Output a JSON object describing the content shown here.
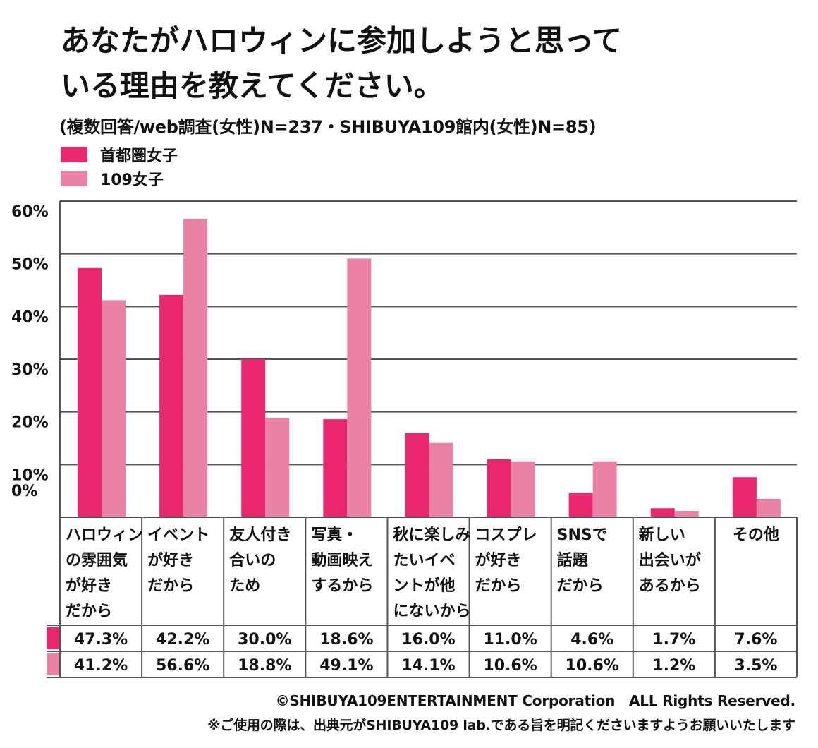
{
  "title_lines": [
    "あなたがハロウィンに参加しようと思って",
    "いる理由を教えてください。"
  ],
  "subtitle": "(複数回答/web調査(女性)N=237・SHIBUYA109館内(女性)N=85)",
  "colors": {
    "series_a": "#e8276e",
    "series_b": "#ea82a6",
    "grid": "#555555"
  },
  "chart_data": {
    "type": "bar",
    "title": "あなたがハロウィンに参加しようと思っている理由を教えてください。",
    "subtitle": "(複数回答/web調査(女性)N=237・SHIBUYA109館内(女性)N=85)",
    "ylim": [
      0,
      60
    ],
    "yticks": [
      0,
      10,
      20,
      30,
      40,
      50,
      60
    ],
    "ytick_labels": [
      "0%",
      "10%",
      "20%",
      "30%",
      "40%",
      "50%",
      "60%"
    ],
    "grid": true,
    "legend": "top-left",
    "categories": [
      [
        "ハロウィン",
        "の雰囲気",
        "が好き",
        "だから"
      ],
      [
        "イベント",
        "が好き",
        "だから"
      ],
      [
        "友人付き",
        "合いの",
        "ため"
      ],
      [
        "写真・",
        "動画映え",
        "するから"
      ],
      [
        "秋に楽しみ",
        "たいイベ",
        "ントが他",
        "にないから"
      ],
      [
        "コスプレ",
        "が好き",
        "だから"
      ],
      [
        "SNSで",
        "話題",
        "だから"
      ],
      [
        "新しい",
        "出会いが",
        "あるから"
      ],
      [
        "その他"
      ]
    ],
    "series": [
      {
        "name": "首都圏女子",
        "values": [
          47.3,
          42.2,
          30.0,
          18.6,
          16.0,
          11.0,
          4.6,
          1.7,
          7.6
        ],
        "value_labels": [
          "47.3%",
          "42.2%",
          "30.0%",
          "18.6%",
          "16.0%",
          "11.0%",
          "4.6%",
          "1.7%",
          "7.6%"
        ]
      },
      {
        "name": "109女子",
        "values": [
          41.2,
          56.6,
          18.8,
          49.1,
          14.1,
          10.6,
          10.6,
          1.2,
          3.5
        ],
        "value_labels": [
          "41.2%",
          "56.6%",
          "18.8%",
          "49.1%",
          "14.1%",
          "10.6%",
          "10.6%",
          "1.2%",
          "3.5%"
        ]
      }
    ]
  },
  "footer": {
    "copyright": "©SHIBUYA109ENTERTAINMENT Corporation　ALL Rights Reserved.",
    "note": "※ご使用の際は、出典元がSHIBUYA109 lab.である旨を明記くださいますようお願いいたします"
  }
}
